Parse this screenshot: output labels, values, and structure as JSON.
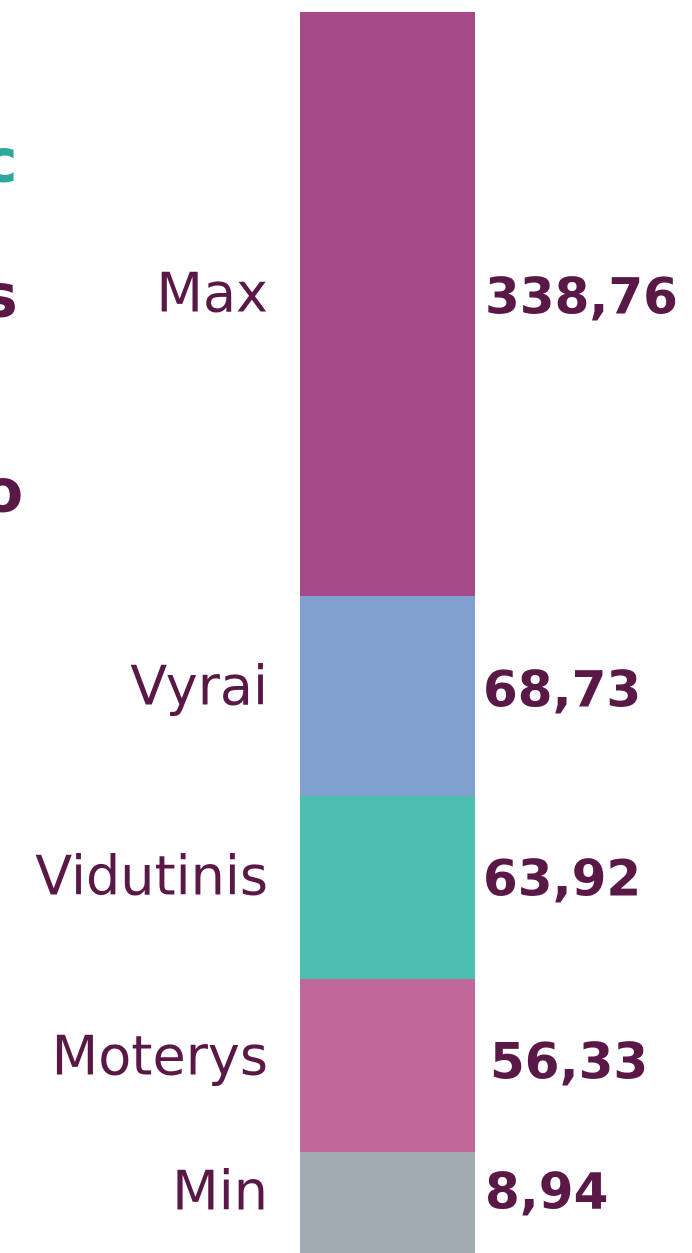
{
  "fragments": [
    {
      "text": "c",
      "color": "#2ea899"
    },
    {
      "text": "s",
      "color": "#5a1846"
    },
    {
      "text": "o",
      "color": "#5a1846"
    },
    {
      "text": ":",
      "color": "#5a1846"
    }
  ],
  "items": [
    {
      "label": "Max",
      "value": "338,76",
      "color": "#a44a88"
    },
    {
      "label": "Vyrai",
      "value": "68,73",
      "color": "#80a1d0"
    },
    {
      "label": "Vidutinis",
      "value": "63,92",
      "color": "#4dbfb0"
    },
    {
      "label": "Moterys",
      "value": "56,33",
      "color": "#c06899"
    },
    {
      "label": "Min",
      "value": "8,94",
      "color": "#a2aab2"
    }
  ]
}
